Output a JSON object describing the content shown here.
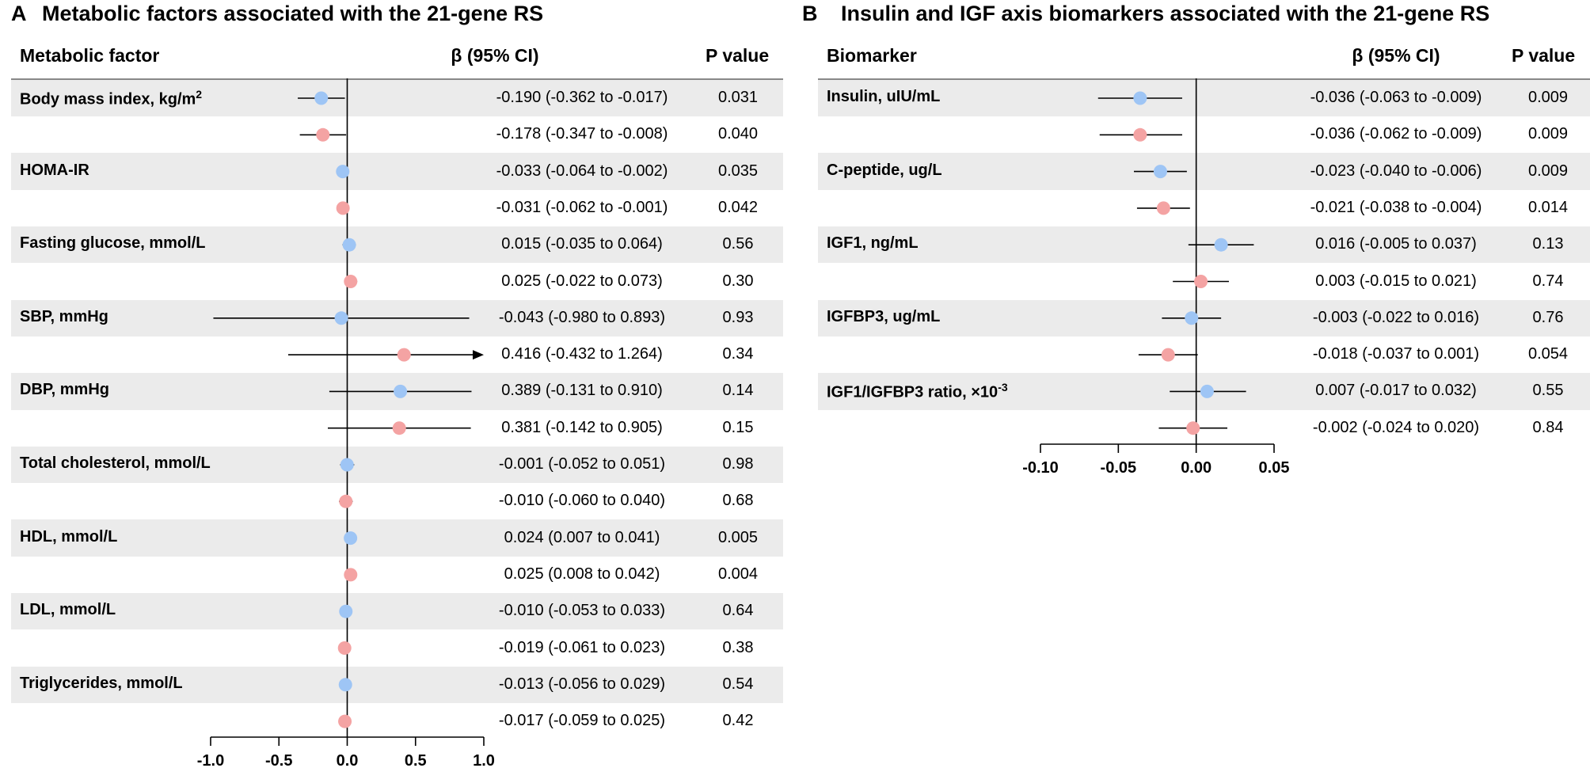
{
  "chart_data": [
    {
      "type": "forest",
      "panel": "A",
      "title": "Metabolic factors associated with the 21-gene RS",
      "col_label": "Metabolic factor",
      "col_beta": "β (95% CI)",
      "col_p": "P value",
      "xlim": [
        -1.0,
        1.0
      ],
      "ticks": [
        -1.0,
        -0.5,
        0.0,
        0.5,
        1.0
      ],
      "tick_labels": [
        "-1.0",
        "-0.5",
        "0.0",
        "0.5",
        "1.0"
      ],
      "series_colors": [
        "#9ec5f5",
        "#f4a3a3"
      ],
      "groups": [
        {
          "label": "Body mass index, kg/m",
          "sup": "2",
          "rows": [
            {
              "est": -0.19,
              "lo": -0.362,
              "hi": -0.017,
              "ci_text": "-0.190 (-0.362 to -0.017)",
              "p": "0.031"
            },
            {
              "est": -0.178,
              "lo": -0.347,
              "hi": -0.008,
              "ci_text": "-0.178 (-0.347 to -0.008)",
              "p": "0.040"
            }
          ]
        },
        {
          "label": "HOMA-IR",
          "sup": "",
          "rows": [
            {
              "est": -0.033,
              "lo": -0.064,
              "hi": -0.002,
              "ci_text": "-0.033 (-0.064 to -0.002)",
              "p": "0.035"
            },
            {
              "est": -0.031,
              "lo": -0.062,
              "hi": -0.001,
              "ci_text": "-0.031 (-0.062 to -0.001)",
              "p": "0.042"
            }
          ]
        },
        {
          "label": "Fasting glucose, mmol/L",
          "sup": "",
          "rows": [
            {
              "est": 0.015,
              "lo": -0.035,
              "hi": 0.064,
              "ci_text": "0.015 (-0.035 to 0.064)",
              "p": "0.56"
            },
            {
              "est": 0.025,
              "lo": -0.022,
              "hi": 0.073,
              "ci_text": "0.025 (-0.022 to 0.073)",
              "p": "0.30"
            }
          ]
        },
        {
          "label": "SBP, mmHg",
          "sup": "",
          "rows": [
            {
              "est": -0.043,
              "lo": -0.98,
              "hi": 0.893,
              "ci_text": "-0.043 (-0.980 to 0.893)",
              "p": "0.93"
            },
            {
              "est": 0.416,
              "lo": -0.432,
              "hi": 1.264,
              "ci_text": "0.416 (-0.432 to 1.264)",
              "p": "0.34"
            }
          ]
        },
        {
          "label": "DBP, mmHg",
          "sup": "",
          "rows": [
            {
              "est": 0.389,
              "lo": -0.131,
              "hi": 0.91,
              "ci_text": "0.389 (-0.131 to 0.910)",
              "p": "0.14"
            },
            {
              "est": 0.381,
              "lo": -0.142,
              "hi": 0.905,
              "ci_text": "0.381 (-0.142 to 0.905)",
              "p": "0.15"
            }
          ]
        },
        {
          "label": "Total cholesterol, mmol/L",
          "sup": "",
          "rows": [
            {
              "est": -0.001,
              "lo": -0.052,
              "hi": 0.051,
              "ci_text": "-0.001 (-0.052 to 0.051)",
              "p": "0.98"
            },
            {
              "est": -0.01,
              "lo": -0.06,
              "hi": 0.04,
              "ci_text": "-0.010 (-0.060 to 0.040)",
              "p": "0.68"
            }
          ]
        },
        {
          "label": "HDL, mmol/L",
          "sup": "",
          "rows": [
            {
              "est": 0.024,
              "lo": 0.007,
              "hi": 0.041,
              "ci_text": "0.024 (0.007 to 0.041)",
              "p": "0.005"
            },
            {
              "est": 0.025,
              "lo": 0.008,
              "hi": 0.042,
              "ci_text": "0.025 (0.008 to 0.042)",
              "p": "0.004"
            }
          ]
        },
        {
          "label": "LDL, mmol/L",
          "sup": "",
          "rows": [
            {
              "est": -0.01,
              "lo": -0.053,
              "hi": 0.033,
              "ci_text": "-0.010 (-0.053 to 0.033)",
              "p": "0.64"
            },
            {
              "est": -0.019,
              "lo": -0.061,
              "hi": 0.023,
              "ci_text": "-0.019 (-0.061 to 0.023)",
              "p": "0.38"
            }
          ]
        },
        {
          "label": "Triglycerides, mmol/L",
          "sup": "",
          "rows": [
            {
              "est": -0.013,
              "lo": -0.056,
              "hi": 0.029,
              "ci_text": "-0.013 (-0.056 to 0.029)",
              "p": "0.54"
            },
            {
              "est": -0.017,
              "lo": -0.059,
              "hi": 0.025,
              "ci_text": "-0.017 (-0.059 to 0.025)",
              "p": "0.42"
            }
          ]
        }
      ]
    },
    {
      "type": "forest",
      "panel": "B",
      "title": "Insulin and IGF axis biomarkers associated with the 21-gene RS",
      "col_label": "Biomarker",
      "col_beta": "β (95% CI)",
      "col_p": "P value",
      "xlim": [
        -0.1,
        0.05
      ],
      "ticks": [
        -0.1,
        -0.05,
        0.0,
        0.05
      ],
      "tick_labels": [
        "-0.10",
        "-0.05",
        "0.00",
        "0.05"
      ],
      "series_colors": [
        "#9ec5f5",
        "#f4a3a3"
      ],
      "groups": [
        {
          "label": "Insulin, uIU/mL",
          "sup": "",
          "rows": [
            {
              "est": -0.036,
              "lo": -0.063,
              "hi": -0.009,
              "ci_text": "-0.036 (-0.063 to -0.009)",
              "p": "0.009"
            },
            {
              "est": -0.036,
              "lo": -0.062,
              "hi": -0.009,
              "ci_text": "-0.036 (-0.062 to -0.009)",
              "p": "0.009"
            }
          ]
        },
        {
          "label": "C-peptide, ug/L",
          "sup": "",
          "rows": [
            {
              "est": -0.023,
              "lo": -0.04,
              "hi": -0.006,
              "ci_text": "-0.023 (-0.040 to -0.006)",
              "p": "0.009"
            },
            {
              "est": -0.021,
              "lo": -0.038,
              "hi": -0.004,
              "ci_text": "-0.021 (-0.038 to -0.004)",
              "p": "0.014"
            }
          ]
        },
        {
          "label": "IGF1, ng/mL",
          "sup": "",
          "rows": [
            {
              "est": 0.016,
              "lo": -0.005,
              "hi": 0.037,
              "ci_text": "0.016 (-0.005 to 0.037)",
              "p": "0.13"
            },
            {
              "est": 0.003,
              "lo": -0.015,
              "hi": 0.021,
              "ci_text": "0.003 (-0.015 to 0.021)",
              "p": "0.74"
            }
          ]
        },
        {
          "label": "IGFBP3, ug/mL",
          "sup": "",
          "rows": [
            {
              "est": -0.003,
              "lo": -0.022,
              "hi": 0.016,
              "ci_text": "-0.003 (-0.022 to 0.016)",
              "p": "0.76"
            },
            {
              "est": -0.018,
              "lo": -0.037,
              "hi": 0.001,
              "ci_text": "-0.018 (-0.037 to 0.001)",
              "p": "0.054"
            }
          ]
        },
        {
          "label": "IGF1/IGFBP3 ratio, ×10",
          "sup": "-3",
          "rows": [
            {
              "est": 0.007,
              "lo": -0.017,
              "hi": 0.032,
              "ci_text": "0.007 (-0.017 to 0.032)",
              "p": "0.55"
            },
            {
              "est": -0.002,
              "lo": -0.024,
              "hi": 0.02,
              "ci_text": "-0.002 (-0.024 to 0.020)",
              "p": "0.84"
            }
          ]
        }
      ]
    }
  ]
}
